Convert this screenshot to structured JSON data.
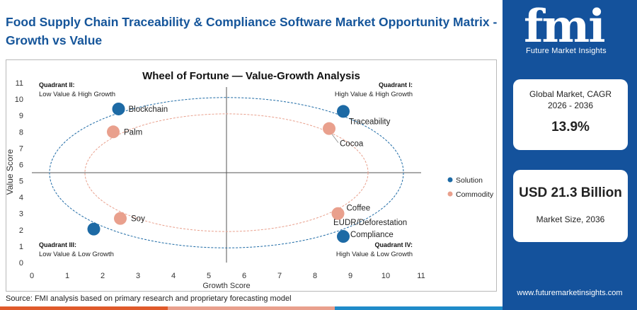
{
  "page": {
    "title": "Food Supply Chain Traceability & Compliance Software Market Opportunity Matrix - Growth vs Value",
    "source": "Source: FMI analysis based on primary research and proprietary forecasting model",
    "brand": {
      "logo": "fmi",
      "tagline": "Future Market Insights",
      "website": "www.futuremarketinsights.com"
    },
    "cards": {
      "cagr_label": "Global Market, CAGR 2026 - 2036",
      "cagr_value": "13.9%",
      "size_value": "USD 21.3 Billion",
      "size_label": "Market Size, 2036"
    },
    "colors": {
      "brand_blue": "#14529c",
      "solution": "#1d6aa5",
      "commodity": "#e9a08d"
    }
  },
  "chart_data": {
    "type": "scatter",
    "title": "Wheel of Fortune — Value-Growth Analysis",
    "xlabel": "Growth Score",
    "ylabel": "Value Score",
    "xlim": [
      0,
      11
    ],
    "ylim": [
      0,
      11
    ],
    "xticks": [
      "0",
      "1",
      "2",
      "3",
      "4",
      "5",
      "6",
      "7",
      "8",
      "9",
      "10",
      "11"
    ],
    "yticks": [
      "0",
      "1",
      "2",
      "3",
      "4",
      "5",
      "6",
      "7",
      "8",
      "9",
      "10",
      "11"
    ],
    "divider_x": 5.5,
    "divider_y": 5.5,
    "quadrants": [
      {
        "name": "Quadrant I:",
        "desc": "High Value & High Growth"
      },
      {
        "name": "Quadrant II:",
        "desc": "Low Value & High Growth"
      },
      {
        "name": "Quadrant III:",
        "desc": "Low Value & Low Growth"
      },
      {
        "name": "Quadrant IV:",
        "desc": "High Value & Low Growth"
      }
    ],
    "series": [
      {
        "name": "Solution",
        "color": "#1d6aa5",
        "points": [
          {
            "label": "Blockchain",
            "x": 2.45,
            "y": 9.4
          },
          {
            "label": "Traceability",
            "x": 8.8,
            "y": 9.25
          },
          {
            "label": "EUDR/Deforestation Compliance",
            "x": 8.8,
            "y": 1.6
          },
          {
            "label": "",
            "x": 1.75,
            "y": 2.05
          }
        ]
      },
      {
        "name": "Commodity",
        "color": "#e9a08d",
        "points": [
          {
            "label": "Palm",
            "x": 2.3,
            "y": 8.0
          },
          {
            "label": "Cocoa",
            "x": 8.4,
            "y": 8.2
          },
          {
            "label": "Coffee",
            "x": 8.65,
            "y": 3.0
          },
          {
            "label": "Soy",
            "x": 2.5,
            "y": 2.7
          }
        ]
      }
    ],
    "legend": [
      "Solution",
      "Commodity"
    ],
    "legend_position": "right"
  }
}
